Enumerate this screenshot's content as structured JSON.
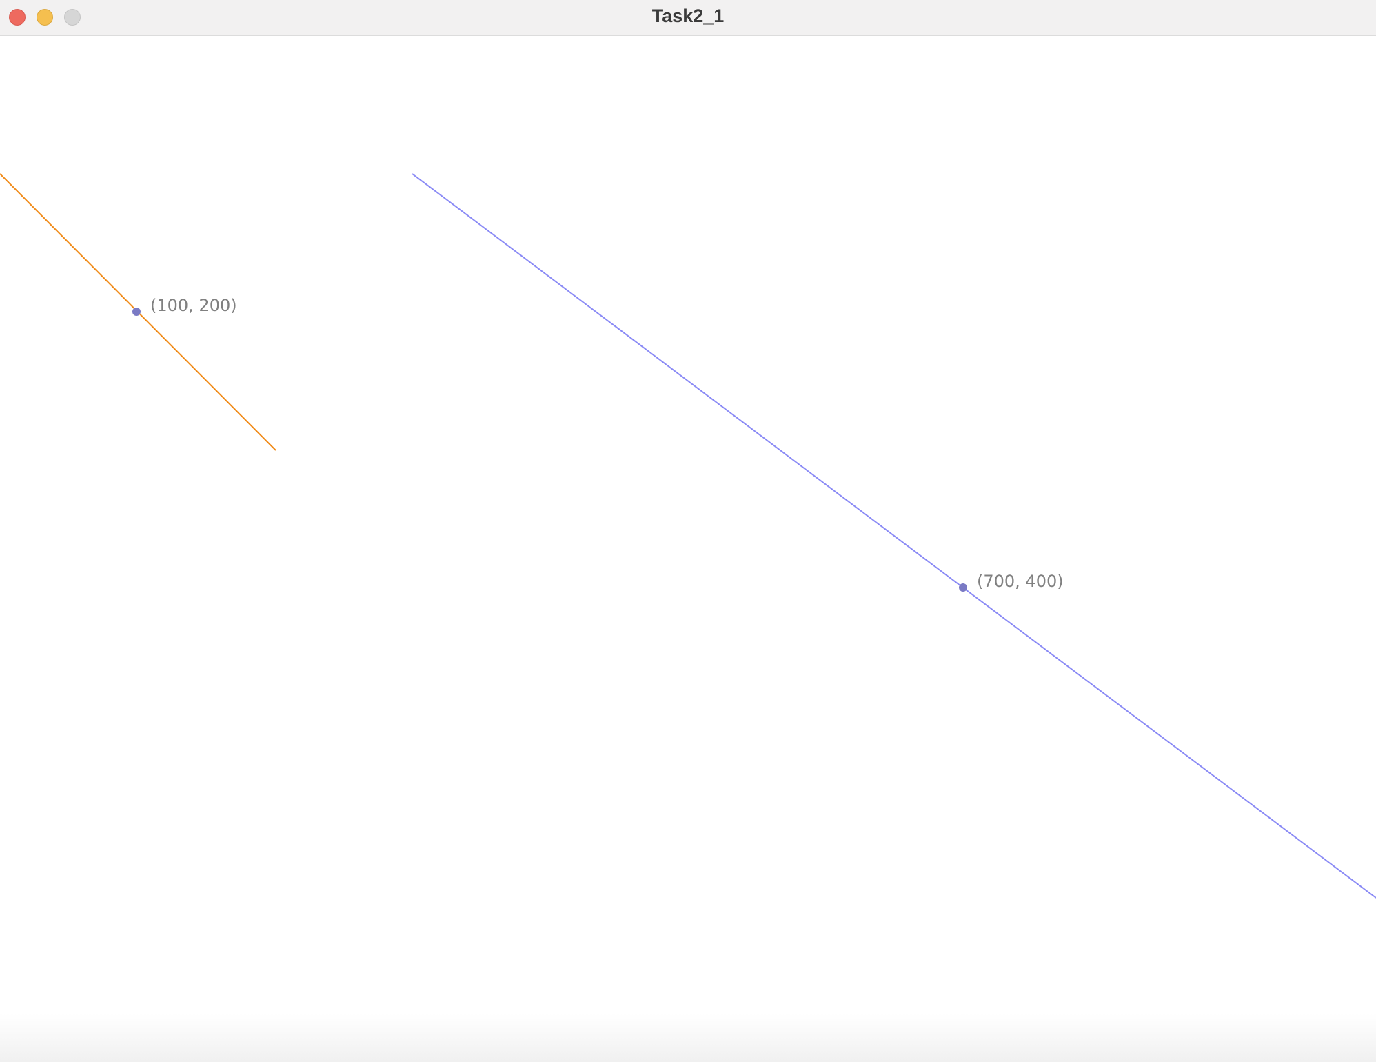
{
  "window": {
    "title": "Task2_1"
  },
  "canvas": {
    "lines": [
      {
        "name": "orange-line",
        "color": "#f08a17"
      },
      {
        "name": "blue-line",
        "color": "#8a8af5"
      }
    ],
    "points": [
      {
        "label": "(100, 200)",
        "color": "#7a7ac4"
      },
      {
        "label": "(700, 400)",
        "color": "#7a7ac4"
      }
    ]
  }
}
